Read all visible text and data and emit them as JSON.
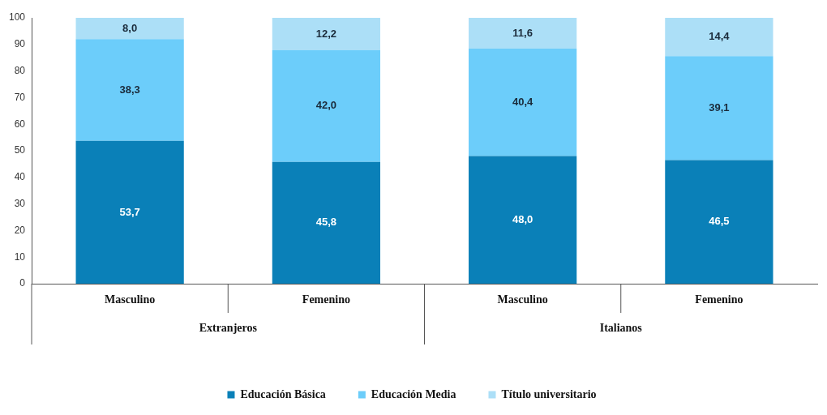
{
  "chart_data": {
    "type": "bar",
    "stacked": true,
    "categories": [
      "Masculino",
      "Femenino",
      "Masculino",
      "Femenino"
    ],
    "series": [
      {
        "name": "Educación Básica",
        "color": "#0a80b8",
        "values": [
          53.7,
          45.8,
          48.0,
          46.5
        ],
        "value_labels": [
          "53,7",
          "45,8",
          "48,0",
          "46,5"
        ]
      },
      {
        "name": "Educación Media",
        "color": "#6ccdfa",
        "values": [
          38.3,
          42.0,
          40.4,
          39.1
        ],
        "value_labels": [
          "38,3",
          "42,0",
          "40,4",
          "39,1"
        ]
      },
      {
        "name": "Título universitario",
        "color": "#acdff7",
        "values": [
          8.0,
          12.2,
          11.6,
          14.4
        ],
        "value_labels": [
          "8,0",
          "12,2",
          "11,6",
          "14,4"
        ]
      }
    ],
    "annotations": [
      "Extranjeros",
      "Italianos"
    ],
    "ylim": [
      0,
      100
    ],
    "yticks": [
      0,
      10,
      20,
      30,
      40,
      50,
      60,
      70,
      80,
      90,
      100
    ],
    "grid": false,
    "legend": "bottom"
  }
}
